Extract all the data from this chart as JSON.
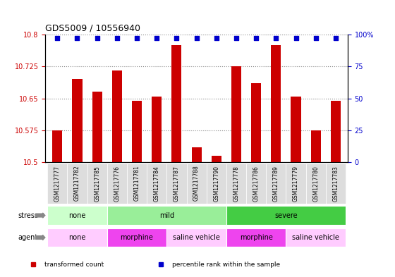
{
  "title": "GDS5009 / 10556940",
  "samples": [
    "GSM1217777",
    "GSM1217782",
    "GSM1217785",
    "GSM1217776",
    "GSM1217781",
    "GSM1217784",
    "GSM1217787",
    "GSM1217788",
    "GSM1217790",
    "GSM1217778",
    "GSM1217786",
    "GSM1217789",
    "GSM1217779",
    "GSM1217780",
    "GSM1217783"
  ],
  "transformed_counts": [
    10.575,
    10.695,
    10.665,
    10.715,
    10.645,
    10.655,
    10.775,
    10.535,
    10.515,
    10.725,
    10.685,
    10.775,
    10.655,
    10.575,
    10.645
  ],
  "percentile_ranks": [
    100,
    100,
    100,
    100,
    100,
    100,
    100,
    100,
    100,
    100,
    100,
    100,
    100,
    100,
    100
  ],
  "bar_color": "#cc0000",
  "dot_color": "#0000cc",
  "ylim_left": [
    10.5,
    10.8
  ],
  "ylim_right": [
    0,
    100
  ],
  "yticks_left": [
    10.5,
    10.575,
    10.65,
    10.725,
    10.8
  ],
  "yticks_right": [
    0,
    25,
    50,
    75,
    100
  ],
  "stress_groups": [
    {
      "label": "none",
      "start": 0,
      "end": 3,
      "color": "#ccffcc"
    },
    {
      "label": "mild",
      "start": 3,
      "end": 9,
      "color": "#99ee99"
    },
    {
      "label": "severe",
      "start": 9,
      "end": 15,
      "color": "#44cc44"
    }
  ],
  "agent_groups": [
    {
      "label": "none",
      "start": 0,
      "end": 3,
      "color": "#ffccff"
    },
    {
      "label": "morphine",
      "start": 3,
      "end": 6,
      "color": "#ee44ee"
    },
    {
      "label": "saline vehicle",
      "start": 6,
      "end": 9,
      "color": "#ffccff"
    },
    {
      "label": "morphine",
      "start": 9,
      "end": 12,
      "color": "#ee44ee"
    },
    {
      "label": "saline vehicle",
      "start": 12,
      "end": 15,
      "color": "#ffccff"
    }
  ],
  "legend_items": [
    {
      "label": "transformed count",
      "color": "#cc0000"
    },
    {
      "label": "percentile rank within the sample",
      "color": "#0000cc"
    }
  ],
  "bar_width": 0.5,
  "title_fontsize": 9,
  "tick_fontsize": 7,
  "sample_fontsize": 5.5,
  "row_fontsize": 7,
  "legend_fontsize": 6.5
}
